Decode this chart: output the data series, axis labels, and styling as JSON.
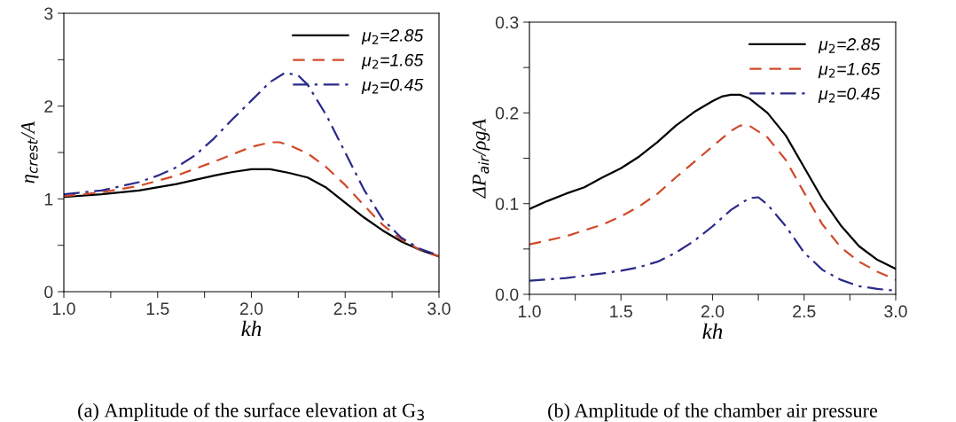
{
  "chart_data": [
    {
      "type": "line",
      "title": "(a) Amplitude of the surface elevation at G$_{3}$",
      "xlabel": "kh",
      "ylabel": "η$_{crest}$/A",
      "legend": "top right",
      "grid": false,
      "xlim": [
        1.0,
        3.0
      ],
      "xticks": [
        {
          "value": 1.0,
          "label": "1.0"
        },
        {
          "value": 1.25,
          "label": null
        },
        {
          "value": 1.5,
          "label": "1.5"
        },
        {
          "value": 1.75,
          "label": null
        },
        {
          "value": 2.0,
          "label": "2.0"
        },
        {
          "value": 2.25,
          "label": null
        },
        {
          "value": 2.5,
          "label": "2.5"
        },
        {
          "value": 2.75,
          "label": null
        },
        {
          "value": 3.0,
          "label": "3.0"
        }
      ],
      "ylim": [
        0,
        3
      ],
      "yticks": [
        0,
        {
          "value": 0.5,
          "label": null
        },
        1,
        {
          "value": 1.5,
          "label": null
        },
        2,
        {
          "value": 2.5,
          "label": null
        },
        3
      ],
      "series": [
        {
          "name": "μ$_{2}$=2.85",
          "color": "#000000",
          "line_style": "solid",
          "x": [
            1.0,
            1.2,
            1.4,
            1.6,
            1.8,
            1.9,
            2.0,
            2.1,
            2.2,
            2.3,
            2.4,
            2.5,
            2.6,
            2.7,
            2.8,
            2.9,
            3.0
          ],
          "values": [
            1.02,
            1.05,
            1.09,
            1.16,
            1.25,
            1.29,
            1.32,
            1.32,
            1.28,
            1.23,
            1.12,
            0.96,
            0.8,
            0.66,
            0.54,
            0.45,
            0.38
          ]
        },
        {
          "name": "μ$_{2}$=1.65",
          "color": "#d04a2a",
          "line_style": "dashed",
          "x": [
            1.0,
            1.2,
            1.4,
            1.6,
            1.8,
            1.9,
            2.0,
            2.1,
            2.15,
            2.2,
            2.3,
            2.4,
            2.5,
            2.6,
            2.7,
            2.8,
            2.9,
            3.0
          ],
          "values": [
            1.03,
            1.07,
            1.14,
            1.25,
            1.4,
            1.48,
            1.56,
            1.61,
            1.61,
            1.58,
            1.49,
            1.34,
            1.15,
            0.93,
            0.72,
            0.56,
            0.45,
            0.38
          ]
        },
        {
          "name": "μ$_{2}$=0.45",
          "color": "#2a2a8a",
          "line_style": "dashdot",
          "x": [
            1.0,
            1.2,
            1.4,
            1.5,
            1.6,
            1.7,
            1.8,
            1.9,
            2.0,
            2.1,
            2.18,
            2.25,
            2.3,
            2.4,
            2.5,
            2.6,
            2.7,
            2.8,
            2.9,
            3.0
          ],
          "values": [
            1.05,
            1.09,
            1.18,
            1.25,
            1.34,
            1.47,
            1.65,
            1.86,
            2.06,
            2.26,
            2.36,
            2.33,
            2.23,
            1.9,
            1.5,
            1.1,
            0.78,
            0.58,
            0.46,
            0.39
          ]
        }
      ]
    },
    {
      "type": "line",
      "title": "(b) Amplitude of the chamber air pressure",
      "xlabel": "kh",
      "ylabel": "ΔP$_{air}$/ρgA",
      "legend": "top right",
      "grid": false,
      "xlim": [
        1.0,
        3.0
      ],
      "xticks": [
        {
          "value": 1.0,
          "label": "1.0"
        },
        {
          "value": 1.25,
          "label": null
        },
        {
          "value": 1.5,
          "label": "1.5"
        },
        {
          "value": 1.75,
          "label": null
        },
        {
          "value": 2.0,
          "label": "2.0"
        },
        {
          "value": 2.25,
          "label": null
        },
        {
          "value": 2.5,
          "label": "2.5"
        },
        {
          "value": 2.75,
          "label": null
        },
        {
          "value": 3.0,
          "label": "3.0"
        }
      ],
      "ylim": [
        0,
        0.3
      ],
      "yticks": [
        {
          "value": 0,
          "label": "0.0"
        },
        {
          "value": 0.05,
          "label": null
        },
        0.1,
        {
          "value": 0.15,
          "label": null
        },
        0.2,
        {
          "value": 0.25,
          "label": null
        },
        0.3
      ],
      "series": [
        {
          "name": "μ$_{2}$=2.85",
          "color": "#000000",
          "line_style": "solid",
          "x": [
            1.0,
            1.1,
            1.2,
            1.3,
            1.4,
            1.5,
            1.6,
            1.7,
            1.8,
            1.9,
            2.0,
            2.05,
            2.1,
            2.15,
            2.2,
            2.3,
            2.4,
            2.5,
            2.6,
            2.7,
            2.8,
            2.9,
            3.0
          ],
          "values": [
            0.094,
            0.103,
            0.111,
            0.118,
            0.129,
            0.139,
            0.152,
            0.168,
            0.186,
            0.201,
            0.213,
            0.218,
            0.22,
            0.22,
            0.216,
            0.2,
            0.175,
            0.14,
            0.105,
            0.076,
            0.053,
            0.038,
            0.028
          ]
        },
        {
          "name": "μ$_{2}$=1.65",
          "color": "#d04a2a",
          "line_style": "dashed",
          "x": [
            1.0,
            1.2,
            1.4,
            1.5,
            1.6,
            1.7,
            1.8,
            1.9,
            2.0,
            2.1,
            2.15,
            2.2,
            2.3,
            2.4,
            2.5,
            2.6,
            2.7,
            2.8,
            2.9,
            3.0
          ],
          "values": [
            0.055,
            0.064,
            0.077,
            0.086,
            0.097,
            0.111,
            0.129,
            0.146,
            0.163,
            0.18,
            0.186,
            0.186,
            0.173,
            0.148,
            0.112,
            0.077,
            0.052,
            0.036,
            0.025,
            0.016
          ]
        },
        {
          "name": "μ$_{2}$=0.45",
          "color": "#2a2a8a",
          "line_style": "dashdot",
          "x": [
            1.0,
            1.2,
            1.4,
            1.5,
            1.6,
            1.7,
            1.8,
            1.9,
            2.0,
            2.1,
            2.2,
            2.25,
            2.3,
            2.4,
            2.5,
            2.6,
            2.7,
            2.8,
            2.9,
            3.0
          ],
          "values": [
            0.015,
            0.018,
            0.023,
            0.026,
            0.03,
            0.036,
            0.046,
            0.059,
            0.075,
            0.093,
            0.106,
            0.107,
            0.099,
            0.075,
            0.046,
            0.027,
            0.016,
            0.009,
            0.006,
            0.004
          ]
        }
      ]
    }
  ]
}
